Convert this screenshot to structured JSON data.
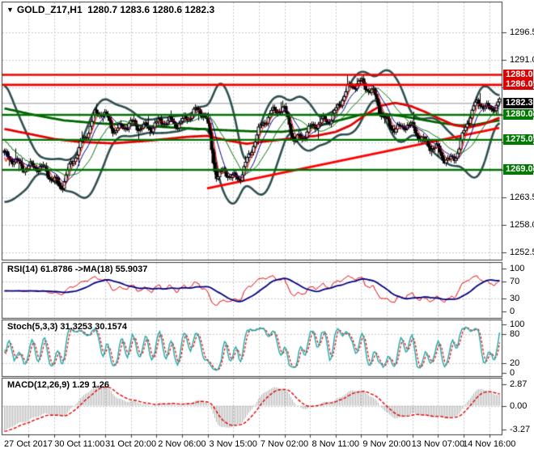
{
  "title": {
    "symbol": "GOLD_Z17,H1",
    "ohlc": "1280.7 1283.6 1280.6 1282.3"
  },
  "colors": {
    "background": "#ffffff",
    "border": "#3a3a3a",
    "grid": "#c9c9c9",
    "candle": "#000000",
    "candle_bull_fill": "#ffffff",
    "candle_bear_fill": "#000000",
    "bollinger": "#2f4f4f",
    "ma_long_green": "#006400",
    "ma_medium_red": "#e60000",
    "trendline": "#ff0000",
    "resistance_line": "#ee0000",
    "support_line": "#007000",
    "current_price_line": "#b8b8b8",
    "thin_ma_fast": "#dd0000",
    "thin_ma_mid": "#000080",
    "thin_ma_slow": "#007000",
    "rsi_line": "#e60000",
    "rsi_ma": "#000080",
    "stoch_k": "#1fa9a9",
    "stoch_d": "#e60000",
    "macd_hist": "#b4b4b4",
    "macd_signal": "#e60000",
    "badge_red": "#dd0000",
    "badge_green": "#007a00",
    "badge_black": "#000000"
  },
  "price_axis": {
    "labels": [
      {
        "text": "1296.5",
        "price": 1296.5
      },
      {
        "text": "1291.0",
        "price": 1291.0
      },
      {
        "text": "1285.5",
        "price": 1285.5
      },
      {
        "text": "1280.0",
        "price": 1280.0
      },
      {
        "text": "1274.5",
        "price": 1274.5
      },
      {
        "text": "1269.0",
        "price": 1269.0
      },
      {
        "text": "1263.5",
        "price": 1263.5
      },
      {
        "text": "1258.0",
        "price": 1258.0
      },
      {
        "text": "1252.5",
        "price": 1252.5
      }
    ],
    "badges": [
      {
        "text": "1288.0",
        "price": 1288.0,
        "kind": "resistance",
        "color": "#dd0000"
      },
      {
        "text": "1286.0",
        "price": 1286.0,
        "kind": "resistance",
        "color": "#dd0000"
      },
      {
        "text": "1282.3",
        "price": 1282.3,
        "kind": "current-price",
        "color": "#000000"
      },
      {
        "text": "1280.0",
        "price": 1280.0,
        "kind": "support",
        "color": "#007a00"
      },
      {
        "text": "1275.0",
        "price": 1275.0,
        "kind": "support",
        "color": "#007a00"
      },
      {
        "text": "1269.0",
        "price": 1269.0,
        "kind": "support",
        "color": "#007a00"
      }
    ]
  },
  "time_axis": {
    "labels": [
      "27 Oct 2017",
      "30 Oct 11:00",
      "31 Oct 20:00",
      "2 Nov 06:00",
      "3 Nov 15:00",
      "7 Nov 02:00",
      "8 Nov 11:00",
      "9 Nov 20:00",
      "13 Nov 07:00",
      "14 Nov 16:00"
    ]
  },
  "panels": {
    "rsi": {
      "label": "RSI(14) 61.8786  ->MA(18) 55.9037",
      "scale": [
        {
          "text": "100",
          "value": 100
        },
        {
          "text": "70",
          "value": 70
        },
        {
          "text": "30",
          "value": 30
        },
        {
          "text": "0",
          "value": 0
        }
      ],
      "levels": [
        70,
        30
      ]
    },
    "stoch": {
      "label": "Stoch(5,3,3) 31.3253 30.1574",
      "scale": [
        {
          "text": "100",
          "value": 100
        },
        {
          "text": "80",
          "value": 80
        },
        {
          "text": "20",
          "value": 20
        },
        {
          "text": "0",
          "value": 0
        }
      ],
      "levels": [
        80,
        20
      ]
    },
    "macd": {
      "label": "MACD(12,26,9) 1.29 1.26",
      "scale": [
        {
          "text": "2.87",
          "value": 2.87
        },
        {
          "text": "0.00",
          "value": 0
        },
        {
          "text": "-3.27",
          "value": -3.27
        }
      ],
      "levels": [
        0
      ]
    }
  },
  "chart_data": {
    "type": "candlestick",
    "symbol": "GOLD_Z17",
    "timeframe": "H1",
    "title": "GOLD_Z17,H1 1280.7 1283.6 1280.6 1282.3",
    "last_ohlc": {
      "open": 1280.7,
      "high": 1283.6,
      "low": 1280.6,
      "close": 1282.3
    },
    "ylim": [
      1250.5,
      1302.5
    ],
    "price_gridlines": [
      1296.5,
      1291.0,
      1285.5,
      1280.0,
      1274.5,
      1269.0,
      1263.5,
      1258.0,
      1252.5
    ],
    "x_tick_labels": [
      "27 Oct 2017",
      "30 Oct 11:00",
      "31 Oct 20:00",
      "2 Nov 06:00",
      "3 Nov 15:00",
      "7 Nov 02:00",
      "8 Nov 11:00",
      "9 Nov 20:00",
      "13 Nov 07:00",
      "14 Nov 16:00"
    ],
    "horizontal_lines": {
      "resistance": [
        1288.0,
        1286.0
      ],
      "support": [
        1280.0,
        1275.0,
        1269.0
      ],
      "current_price": 1282.3
    },
    "trendline": {
      "points": [
        [
          0.41,
          1265.3
        ],
        [
          1.0,
          1277.4
        ]
      ]
    },
    "num_bars": 307,
    "noise_amp": 1.0,
    "price_path": [
      [
        0.0,
        1271.4
      ],
      [
        0.025,
        1270.3
      ],
      [
        0.055,
        1269.7
      ],
      [
        0.085,
        1268.5
      ],
      [
        0.105,
        1266.9
      ],
      [
        0.114,
        1265.9
      ],
      [
        0.125,
        1267.6
      ],
      [
        0.14,
        1270.8
      ],
      [
        0.155,
        1274.2
      ],
      [
        0.17,
        1277.6
      ],
      [
        0.183,
        1279.9
      ],
      [
        0.195,
        1280.2
      ],
      [
        0.21,
        1278.7
      ],
      [
        0.221,
        1277.4
      ],
      [
        0.245,
        1277.9
      ],
      [
        0.27,
        1277.5
      ],
      [
        0.3,
        1278.1
      ],
      [
        0.33,
        1278.3
      ],
      [
        0.359,
        1279.0
      ],
      [
        0.385,
        1280.1
      ],
      [
        0.4,
        1280.6
      ],
      [
        0.408,
        1279.6
      ],
      [
        0.415,
        1276.2
      ],
      [
        0.422,
        1270.9
      ],
      [
        0.43,
        1267.4
      ],
      [
        0.445,
        1268.3
      ],
      [
        0.46,
        1267.2
      ],
      [
        0.475,
        1268.0
      ],
      [
        0.482,
        1269.3
      ],
      [
        0.495,
        1271.8
      ],
      [
        0.51,
        1275.4
      ],
      [
        0.525,
        1278.9
      ],
      [
        0.54,
        1280.9
      ],
      [
        0.552,
        1281.4
      ],
      [
        0.565,
        1280.4
      ],
      [
        0.577,
        1277.6
      ],
      [
        0.585,
        1274.6
      ],
      [
        0.596,
        1275.8
      ],
      [
        0.615,
        1277.1
      ],
      [
        0.637,
        1278.0
      ],
      [
        0.655,
        1279.3
      ],
      [
        0.67,
        1281.2
      ],
      [
        0.685,
        1283.6
      ],
      [
        0.7,
        1285.3
      ],
      [
        0.712,
        1286.4
      ],
      [
        0.722,
        1286.8
      ],
      [
        0.733,
        1285.9
      ],
      [
        0.745,
        1284.1
      ],
      [
        0.755,
        1281.7
      ],
      [
        0.763,
        1279.4
      ],
      [
        0.775,
        1278.4
      ],
      [
        0.788,
        1277.8
      ],
      [
        0.8,
        1277.4
      ],
      [
        0.812,
        1277.9
      ],
      [
        0.825,
        1276.8
      ],
      [
        0.842,
        1275.6
      ],
      [
        0.858,
        1274.3
      ],
      [
        0.872,
        1273.0
      ],
      [
        0.885,
        1271.2
      ],
      [
        0.898,
        1270.6
      ],
      [
        0.91,
        1272.2
      ],
      [
        0.923,
        1275.0
      ],
      [
        0.935,
        1278.3
      ],
      [
        0.948,
        1281.0
      ],
      [
        0.96,
        1282.6
      ],
      [
        0.972,
        1282.1
      ],
      [
        0.98,
        1281.2
      ],
      [
        0.99,
        1281.9
      ],
      [
        1.0,
        1282.3
      ]
    ],
    "ma_medium_red_path": [
      [
        0.0,
        1277.2
      ],
      [
        0.05,
        1276.2
      ],
      [
        0.1,
        1275.2
      ],
      [
        0.15,
        1274.6
      ],
      [
        0.22,
        1274.3
      ],
      [
        0.3,
        1274.9
      ],
      [
        0.37,
        1275.6
      ],
      [
        0.41,
        1275.8
      ],
      [
        0.45,
        1274.9
      ],
      [
        0.49,
        1274.2
      ],
      [
        0.53,
        1274.7
      ],
      [
        0.58,
        1275.3
      ],
      [
        0.63,
        1275.8
      ],
      [
        0.67,
        1276.6
      ],
      [
        0.7,
        1277.9
      ],
      [
        0.73,
        1280.0
      ],
      [
        0.76,
        1281.8
      ],
      [
        0.79,
        1282.4
      ],
      [
        0.82,
        1281.8
      ],
      [
        0.85,
        1280.6
      ],
      [
        0.88,
        1279.2
      ],
      [
        0.91,
        1277.9
      ],
      [
        0.94,
        1277.5
      ],
      [
        0.97,
        1278.2
      ],
      [
        1.0,
        1279.4
      ]
    ],
    "ma_long_green_path": [
      [
        0.0,
        1281.3
      ],
      [
        0.06,
        1280.0
      ],
      [
        0.12,
        1278.9
      ],
      [
        0.19,
        1278.3
      ],
      [
        0.27,
        1277.9
      ],
      [
        0.35,
        1277.4
      ],
      [
        0.43,
        1277.0
      ],
      [
        0.5,
        1276.7
      ],
      [
        0.56,
        1276.6
      ],
      [
        0.6,
        1277.0
      ],
      [
        0.64,
        1277.9
      ],
      [
        0.68,
        1279.0
      ],
      [
        0.72,
        1280.0
      ],
      [
        0.76,
        1280.3
      ],
      [
        0.8,
        1279.8
      ],
      [
        0.84,
        1279.1
      ],
      [
        0.88,
        1278.4
      ],
      [
        0.92,
        1277.9
      ],
      [
        0.95,
        1278.0
      ],
      [
        1.0,
        1278.9
      ]
    ],
    "bollinger": {
      "period": 20,
      "deviation": 2
    },
    "overlay_ma_periods": {
      "fast": 5,
      "mid": 10,
      "slow": 21
    },
    "indicators": [
      {
        "name": "RSI",
        "params": [
          14
        ],
        "value": 61.8786,
        "ma_period": 18,
        "ma_value": 55.9037,
        "scale": [
          100,
          70,
          30,
          0
        ],
        "levels": [
          70,
          30
        ]
      },
      {
        "name": "Stochastic",
        "params": [
          5,
          3,
          3
        ],
        "k": 31.3253,
        "d": 30.1574,
        "scale": [
          100,
          80,
          20,
          0
        ],
        "levels": [
          80,
          20
        ]
      },
      {
        "name": "MACD",
        "params": [
          12,
          26,
          9
        ],
        "macd": 1.29,
        "signal": 1.26,
        "scale": [
          2.87,
          0.0,
          -3.27
        ]
      }
    ]
  }
}
